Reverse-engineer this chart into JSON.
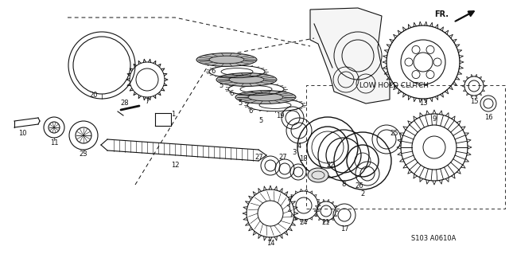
{
  "bg_color": "#ffffff",
  "lc": "#111111",
  "part_code": "S103 A0610A",
  "low_hold_text": "LOW HOLD CLUTCH",
  "fr_text": "FR.",
  "figsize": [
    6.4,
    3.19
  ],
  "dpi": 100
}
